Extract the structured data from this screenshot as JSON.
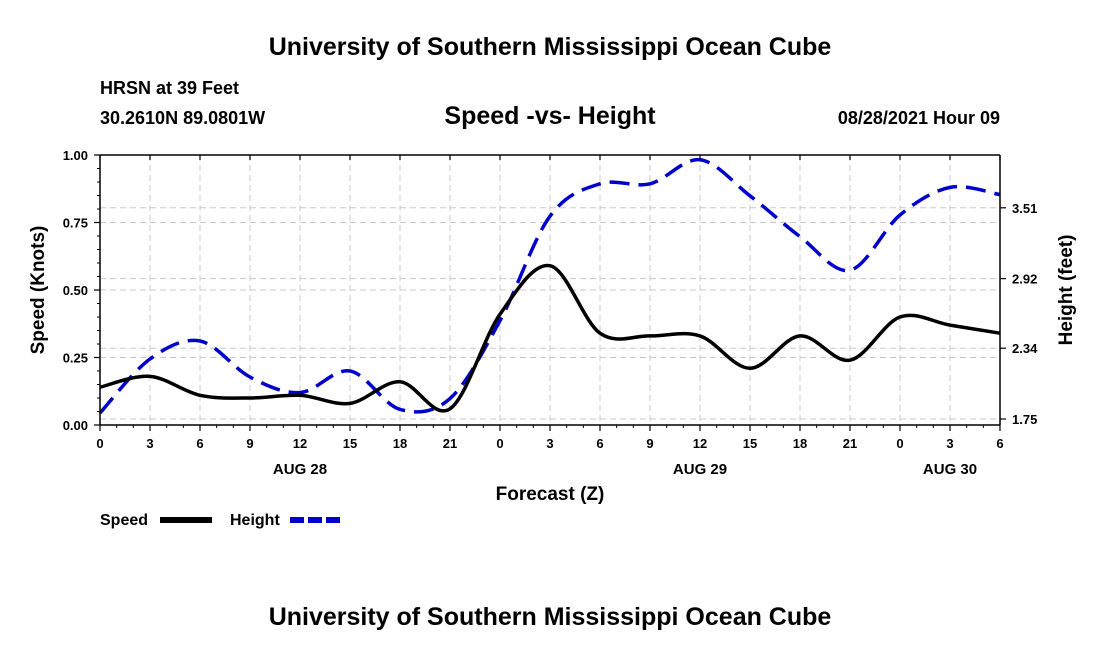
{
  "header": {
    "title_top": "University of Southern Mississippi Ocean Cube",
    "title_bottom": "University of Southern Mississippi Ocean Cube",
    "station": "HRSN at 39 Feet",
    "coords": "30.2610N  89.0801W",
    "chart_title": "Speed -vs- Height",
    "datetime": "08/28/2021 Hour 09"
  },
  "chart_data": {
    "type": "line",
    "title": "Speed -vs- Height",
    "xlabel": "Forecast (Z)",
    "ylabel": "Speed (Knots)",
    "y2label": "Height (feet)",
    "ylim": [
      0,
      1
    ],
    "y2lim": [
      1.7,
      3.95
    ],
    "grid": true,
    "legend": "bottom-left",
    "x": [
      0,
      3,
      6,
      9,
      12,
      15,
      18,
      21,
      24,
      27,
      30,
      33,
      36,
      39,
      42,
      45,
      48,
      51,
      54
    ],
    "x_ticks": [
      0,
      3,
      6,
      9,
      12,
      15,
      18,
      21,
      24,
      27,
      30,
      33,
      36,
      39,
      42,
      45,
      48,
      51,
      54
    ],
    "x_tick_labels": [
      "0",
      "3",
      "6",
      "9",
      "12",
      "15",
      "18",
      "21",
      "0",
      "3",
      "6",
      "9",
      "12",
      "15",
      "18",
      "21",
      "0",
      "3",
      "6"
    ],
    "day_labels": [
      {
        "x": 12,
        "label": "AUG 28"
      },
      {
        "x": 36,
        "label": "AUG 29"
      },
      {
        "x": 51,
        "label": "AUG 30"
      }
    ],
    "y_ticks": [
      0.0,
      0.25,
      0.5,
      0.75,
      1.0
    ],
    "y_tick_labels": [
      "0.00",
      "0.25",
      "0.50",
      "0.75",
      "1.00"
    ],
    "y2_ticks": [
      1.75,
      2.34,
      2.92,
      3.51
    ],
    "y2_tick_labels": [
      "1.75",
      "2.34",
      "2.92",
      "3.51"
    ],
    "series": [
      {
        "name": "Speed",
        "axis": "left",
        "color": "#000000",
        "dash": "",
        "values": [
          0.14,
          0.18,
          0.11,
          0.1,
          0.11,
          0.08,
          0.16,
          0.06,
          0.41,
          0.59,
          0.34,
          0.33,
          0.33,
          0.21,
          0.33,
          0.24,
          0.4,
          0.37,
          0.34
        ]
      },
      {
        "name": "Height",
        "axis": "right",
        "color": "#0000cc",
        "dash": "20,9",
        "values": [
          1.8,
          2.25,
          2.4,
          2.1,
          1.97,
          2.15,
          1.83,
          1.92,
          2.57,
          3.44,
          3.71,
          3.71,
          3.91,
          3.61,
          3.27,
          2.99,
          3.45,
          3.68,
          3.62
        ]
      }
    ]
  },
  "legend": {
    "speed_label": "Speed",
    "height_label": "Height"
  }
}
